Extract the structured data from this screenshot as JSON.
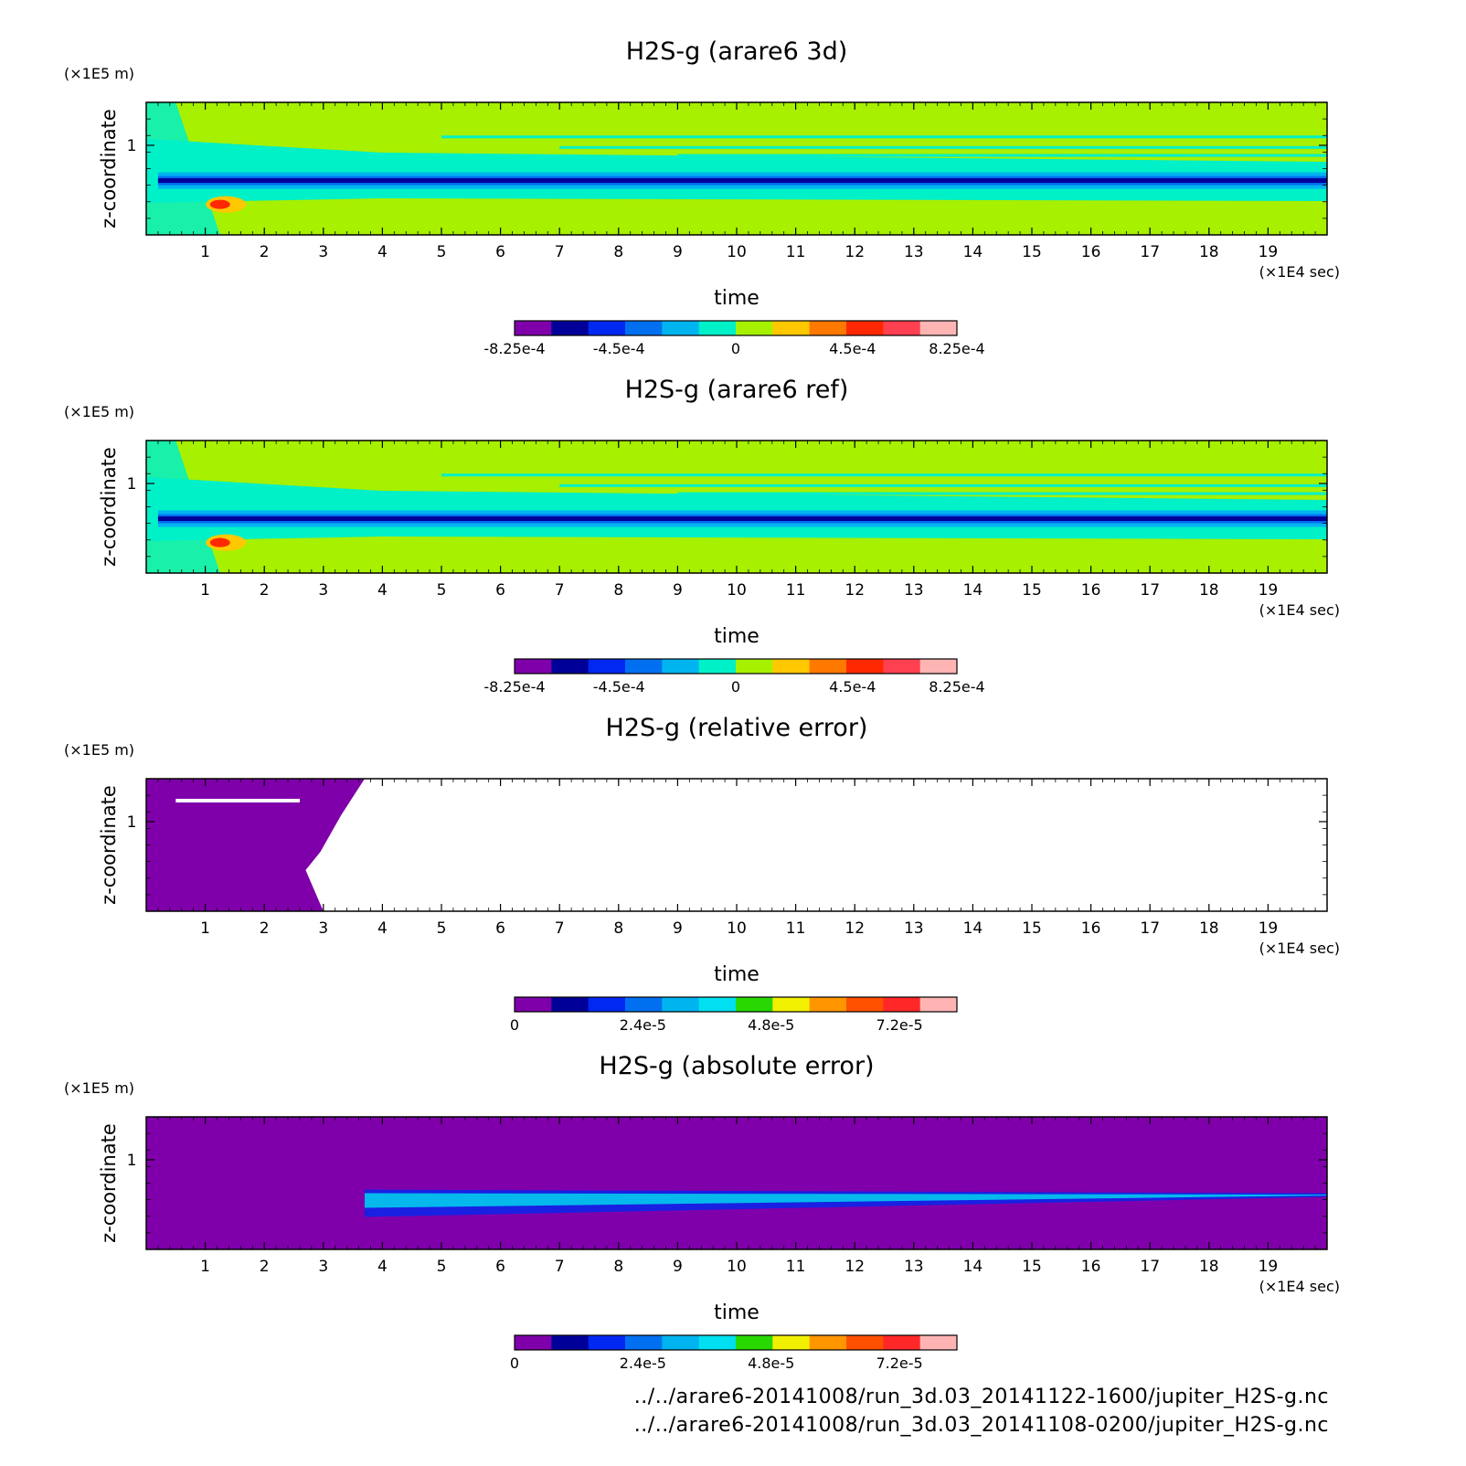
{
  "chart_data": [
    {
      "type": "heatmap",
      "title": "H2S-g (arare6 3d)",
      "xlabel": "time",
      "x_unit": "(×1E4 sec)",
      "ylabel": "z-coordinate",
      "y_unit": "(×1E5 m)",
      "xlim": [
        0,
        20
      ],
      "xticks": [
        "1",
        "2",
        "3",
        "4",
        "5",
        "6",
        "7",
        "8",
        "9",
        "10",
        "11",
        "12",
        "13",
        "14",
        "15",
        "16",
        "17",
        "18",
        "19"
      ],
      "yticks": [
        "1"
      ],
      "colorbar": {
        "levels": 11,
        "colors": [
          "#7f00aa",
          "#000098",
          "#0028f0",
          "#0070f0",
          "#00b4f0",
          "#00f0c8",
          "#a6f000",
          "#ffc800",
          "#ff7800",
          "#ff2800",
          "#ff4050",
          "#ffb4b4"
        ],
        "tick_labels": [
          "-8.25e-4",
          "-4.5e-4",
          "0",
          "4.5e-4",
          "8.25e-4"
        ]
      },
      "field_description": "background ~0 (green), thin negative band near z~0.7, positive blob near t~1.2"
    },
    {
      "type": "heatmap",
      "title": "H2S-g (arare6 ref)",
      "xlabel": "time",
      "x_unit": "(×1E4 sec)",
      "ylabel": "z-coordinate",
      "y_unit": "(×1E5 m)",
      "xlim": [
        0,
        20
      ],
      "xticks": [
        "1",
        "2",
        "3",
        "4",
        "5",
        "6",
        "7",
        "8",
        "9",
        "10",
        "11",
        "12",
        "13",
        "14",
        "15",
        "16",
        "17",
        "18",
        "19"
      ],
      "yticks": [
        "1"
      ],
      "colorbar": {
        "levels": 11,
        "colors": [
          "#7f00aa",
          "#000098",
          "#0028f0",
          "#0070f0",
          "#00b4f0",
          "#00f0c8",
          "#a6f000",
          "#ffc800",
          "#ff7800",
          "#ff2800",
          "#ff4050",
          "#ffb4b4"
        ],
        "tick_labels": [
          "-8.25e-4",
          "-4.5e-4",
          "0",
          "4.5e-4",
          "8.25e-4"
        ]
      }
    },
    {
      "type": "heatmap",
      "title": "H2S-g (relative error)",
      "xlabel": "time",
      "x_unit": "(×1E4 sec)",
      "ylabel": "z-coordinate",
      "y_unit": "(×1E5 m)",
      "xlim": [
        0,
        20
      ],
      "xticks": [
        "1",
        "2",
        "3",
        "4",
        "5",
        "6",
        "7",
        "8",
        "9",
        "10",
        "11",
        "12",
        "13",
        "14",
        "15",
        "16",
        "17",
        "18",
        "19"
      ],
      "yticks": [
        "1"
      ],
      "colorbar": {
        "levels": 10,
        "colors": [
          "#7f00aa",
          "#000098",
          "#0028f0",
          "#0070f0",
          "#00b4f0",
          "#00e0f0",
          "#28d800",
          "#f0f000",
          "#ff9600",
          "#ff5000",
          "#ff2828",
          "#ffb4b4"
        ],
        "tick_labels": [
          "0",
          "2.4e-5",
          "4.8e-5",
          "7.2e-5"
        ]
      },
      "field_description": "purple (0) for t < ~3, blank (undefined) afterwards"
    },
    {
      "type": "heatmap",
      "title": "H2S-g (absolute error)",
      "xlabel": "time",
      "x_unit": "(×1E4 sec)",
      "ylabel": "z-coordinate",
      "y_unit": "(×1E5 m)",
      "xlim": [
        0,
        20
      ],
      "xticks": [
        "1",
        "2",
        "3",
        "4",
        "5",
        "6",
        "7",
        "8",
        "9",
        "10",
        "11",
        "12",
        "13",
        "14",
        "15",
        "16",
        "17",
        "18",
        "19"
      ],
      "yticks": [
        "1"
      ],
      "colorbar": {
        "levels": 10,
        "colors": [
          "#7f00aa",
          "#000098",
          "#0028f0",
          "#0070f0",
          "#00b4f0",
          "#00e0f0",
          "#28d800",
          "#f0f000",
          "#ff9600",
          "#ff5000",
          "#ff2828",
          "#ffb4b4"
        ],
        "tick_labels": [
          "0",
          "2.4e-5",
          "4.8e-5",
          "7.2e-5"
        ]
      },
      "field_description": "purple (0) background, small errors along z~0.7 band starting near t~3.7"
    }
  ],
  "footer": {
    "line1": "../../arare6-20141008/run_3d.03_20141122-1600/jupiter_H2S-g.nc",
    "line2": "../../arare6-20141008/run_3d.03_20141108-0200/jupiter_H2S-g.nc"
  }
}
